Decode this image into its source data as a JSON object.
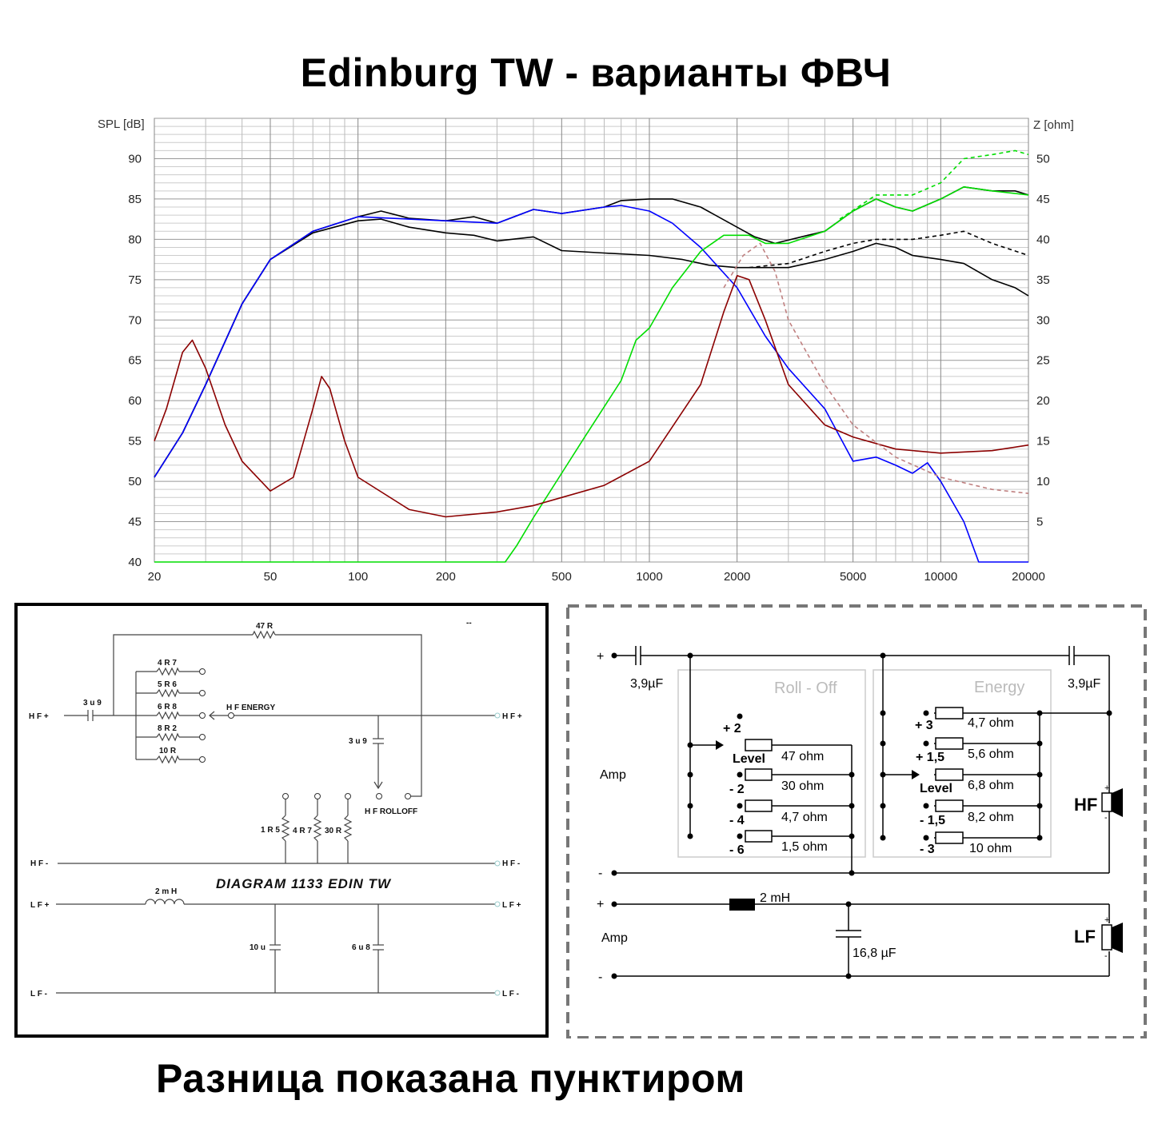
{
  "title": "Edinburg TW  - варианты ФВЧ",
  "footer": "Разница показана пунктиром",
  "chart_data": {
    "type": "line",
    "ylabel": "SPL [dB]",
    "y2label": "Z [ohm]",
    "xscale": "log",
    "xlim": [
      20,
      20000
    ],
    "ylim": [
      40,
      95
    ],
    "y2lim": [
      0,
      55
    ],
    "xticks": [
      "20",
      "50",
      "100",
      "200",
      "500",
      "1000",
      "2000",
      "5000",
      "10000",
      "20000"
    ],
    "yticks": [
      "40",
      "45",
      "50",
      "55",
      "60",
      "65",
      "70",
      "75",
      "80",
      "85",
      "90"
    ],
    "y2ticks": [
      "0",
      "5",
      "10",
      "15",
      "20",
      "25",
      "30",
      "35",
      "40",
      "45",
      "50"
    ],
    "grid": true,
    "series": [
      {
        "color": "#000000",
        "dash": false,
        "points": [
          [
            20,
            50.5
          ],
          [
            25,
            56
          ],
          [
            30,
            62
          ],
          [
            40,
            72
          ],
          [
            50,
            77.5
          ],
          [
            70,
            81
          ],
          [
            100,
            82.8
          ],
          [
            120,
            83.5
          ],
          [
            150,
            82.6
          ],
          [
            200,
            82.3
          ],
          [
            250,
            82.8
          ],
          [
            300,
            82
          ],
          [
            400,
            83.7
          ],
          [
            500,
            83.2
          ],
          [
            700,
            84
          ],
          [
            800,
            84.8
          ],
          [
            1000,
            85
          ],
          [
            1200,
            85
          ],
          [
            1500,
            84
          ],
          [
            2000,
            81.5
          ],
          [
            2300,
            80.3
          ],
          [
            2700,
            79.5
          ],
          [
            3500,
            80.5
          ],
          [
            4000,
            81
          ],
          [
            5000,
            83.5
          ],
          [
            6000,
            85
          ],
          [
            7000,
            84
          ],
          [
            8000,
            83.5
          ],
          [
            10000,
            85
          ],
          [
            12000,
            86.5
          ],
          [
            15000,
            86
          ],
          [
            18000,
            86
          ],
          [
            20000,
            85.5
          ]
        ]
      },
      {
        "color": "#000000",
        "dash": false,
        "points": [
          [
            20,
            50.5
          ],
          [
            25,
            56
          ],
          [
            30,
            62
          ],
          [
            40,
            72
          ],
          [
            50,
            77.5
          ],
          [
            70,
            80.8
          ],
          [
            100,
            82.3
          ],
          [
            120,
            82.5
          ],
          [
            150,
            81.5
          ],
          [
            200,
            80.8
          ],
          [
            250,
            80.5
          ],
          [
            300,
            79.8
          ],
          [
            400,
            80.3
          ],
          [
            500,
            78.6
          ],
          [
            700,
            78.3
          ],
          [
            1000,
            78
          ],
          [
            1300,
            77.5
          ],
          [
            1600,
            76.8
          ],
          [
            2000,
            76.5
          ],
          [
            2500,
            76.5
          ],
          [
            3000,
            76.5
          ],
          [
            4000,
            77.5
          ],
          [
            5000,
            78.5
          ],
          [
            6000,
            79.5
          ],
          [
            7000,
            79
          ],
          [
            8000,
            78
          ],
          [
            10000,
            77.5
          ],
          [
            12000,
            77
          ],
          [
            15000,
            75
          ],
          [
            18000,
            74
          ],
          [
            20000,
            73
          ]
        ]
      },
      {
        "color": "#0000ff",
        "dash": false,
        "points": [
          [
            20,
            50.5
          ],
          [
            25,
            56
          ],
          [
            30,
            62
          ],
          [
            40,
            72
          ],
          [
            50,
            77.5
          ],
          [
            70,
            81
          ],
          [
            100,
            82.8
          ],
          [
            200,
            82.3
          ],
          [
            300,
            82
          ],
          [
            400,
            83.7
          ],
          [
            500,
            83.2
          ],
          [
            700,
            84
          ],
          [
            800,
            84.2
          ],
          [
            1000,
            83.5
          ],
          [
            1200,
            82
          ],
          [
            1500,
            79
          ],
          [
            2000,
            74
          ],
          [
            2500,
            68
          ],
          [
            3000,
            64
          ],
          [
            4000,
            59
          ],
          [
            5000,
            52.5
          ],
          [
            6000,
            53
          ],
          [
            7000,
            52
          ],
          [
            8000,
            51
          ],
          [
            9000,
            52.3
          ],
          [
            10000,
            50
          ],
          [
            12000,
            45
          ],
          [
            13500,
            40
          ],
          [
            20000,
            40
          ]
        ]
      },
      {
        "color": "#00dd00",
        "dash": false,
        "points": [
          [
            20,
            40
          ],
          [
            320,
            40
          ],
          [
            350,
            42
          ],
          [
            400,
            45.5
          ],
          [
            500,
            51
          ],
          [
            600,
            55.5
          ],
          [
            800,
            62.5
          ],
          [
            900,
            67.5
          ],
          [
            1000,
            69
          ],
          [
            1200,
            74
          ],
          [
            1500,
            78.5
          ],
          [
            1800,
            80.5
          ],
          [
            2000,
            80.5
          ],
          [
            2200,
            80.5
          ],
          [
            2500,
            79.5
          ],
          [
            3000,
            79.5
          ],
          [
            4000,
            81
          ],
          [
            5000,
            83.5
          ],
          [
            6000,
            85
          ],
          [
            7000,
            84
          ],
          [
            8000,
            83.5
          ],
          [
            10000,
            85
          ],
          [
            12000,
            86.5
          ],
          [
            15000,
            86
          ],
          [
            20000,
            85.5
          ]
        ]
      },
      {
        "color": "#00dd00",
        "dash": true,
        "points": [
          [
            4500,
            82.5
          ],
          [
            6000,
            85.5
          ],
          [
            8000,
            85.5
          ],
          [
            10000,
            87
          ],
          [
            12000,
            90
          ],
          [
            15000,
            90.5
          ],
          [
            18000,
            91
          ],
          [
            20000,
            90.5
          ]
        ]
      },
      {
        "color": "#000000",
        "dash": true,
        "points": [
          [
            2200,
            76.5
          ],
          [
            3000,
            77
          ],
          [
            4000,
            78.5
          ],
          [
            5000,
            79.5
          ],
          [
            6000,
            80
          ],
          [
            8000,
            80
          ],
          [
            10000,
            80.5
          ],
          [
            12000,
            81
          ],
          [
            15000,
            79.5
          ],
          [
            20000,
            78
          ]
        ]
      },
      {
        "color": "#8b0000",
        "dash": false,
        "axis": "y2",
        "points": [
          [
            20,
            15
          ],
          [
            22,
            19
          ],
          [
            25,
            26
          ],
          [
            27,
            27.5
          ],
          [
            30,
            24
          ],
          [
            35,
            17
          ],
          [
            40,
            12.5
          ],
          [
            50,
            8.8
          ],
          [
            60,
            10.5
          ],
          [
            70,
            19
          ],
          [
            75,
            23
          ],
          [
            80,
            21.5
          ],
          [
            90,
            15
          ],
          [
            100,
            10.5
          ],
          [
            150,
            6.5
          ],
          [
            200,
            5.6
          ],
          [
            300,
            6.2
          ],
          [
            400,
            7
          ],
          [
            500,
            8
          ],
          [
            700,
            9.5
          ],
          [
            1000,
            12.5
          ],
          [
            1500,
            22
          ],
          [
            1800,
            31
          ],
          [
            2000,
            35.5
          ],
          [
            2200,
            35
          ],
          [
            2500,
            30
          ],
          [
            3000,
            22
          ],
          [
            4000,
            17
          ],
          [
            5000,
            15.5
          ],
          [
            7000,
            14
          ],
          [
            10000,
            13.5
          ],
          [
            15000,
            13.8
          ],
          [
            20000,
            14.5
          ]
        ]
      },
      {
        "color": "#c08080",
        "dash": true,
        "axis": "y2",
        "points": [
          [
            1800,
            34
          ],
          [
            2100,
            38
          ],
          [
            2400,
            39.5
          ],
          [
            2700,
            36
          ],
          [
            3000,
            30
          ],
          [
            4000,
            22
          ],
          [
            5000,
            17
          ],
          [
            7000,
            13
          ],
          [
            10000,
            10.5
          ],
          [
            15000,
            9
          ],
          [
            20000,
            8.5
          ]
        ]
      }
    ]
  },
  "schematic_left": {
    "resistor_top": "47 R",
    "taps": [
      "4 R 7",
      "5 R 6",
      "6 R 8",
      "8 R 2",
      "10 R"
    ],
    "cap_in": "3 u 9",
    "hf_plus": "H F +",
    "hf_energy": "H F    ENERGY",
    "cap_roll": "3 u 9",
    "hf_rolloff": "H F    ROLLOFF",
    "r_low": [
      "1 R 5",
      "4 R 7",
      "30 R"
    ],
    "hf_minus": "H F -",
    "diagram_name": "DIAGRAM 1133 EDIN TW",
    "inductor": "2 m H",
    "lf_plus": "L F +",
    "cap_10u": "10 u",
    "cap_6u8": "6 u 8",
    "lf_minus": "L F -",
    "mark": "--"
  },
  "schematic_right": {
    "cap_left": "3,9µF",
    "cap_right": "3,9µF",
    "rolloff_label": "Roll - Off",
    "energy_label": "Energy",
    "amp1": "Amp",
    "amp2": "Amp",
    "plus": "+",
    "minus": "-",
    "level": "Level",
    "rolloff_steps": [
      "+ 2",
      "- 2",
      "- 4",
      "- 6"
    ],
    "rolloff_values": [
      "47  ohm",
      "30  ohm",
      "4,7  ohm",
      "1,5  ohm"
    ],
    "energy_steps": [
      "+ 3",
      "+ 1,5",
      "- 1,5",
      "- 3"
    ],
    "energy_values": [
      "4,7  ohm",
      "5,6  ohm",
      "6,8  ohm",
      "8,2  ohm",
      "10  ohm"
    ],
    "hf": "HF",
    "lf": "LF",
    "inductor": "2 mH",
    "cap_lf": "16,8 µF"
  }
}
